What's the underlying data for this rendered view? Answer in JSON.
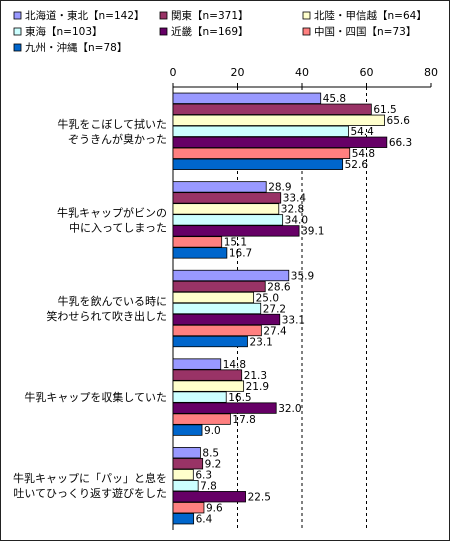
{
  "chart_data": {
    "type": "bar",
    "orientation": "horizontal",
    "title": "",
    "xlabel": "",
    "ylabel": "",
    "xlim": [
      0,
      80
    ],
    "x_ticks": [
      "0",
      "20",
      "40",
      "60",
      "80"
    ],
    "grid": "vertical dashed lines at 20, 40, 60",
    "legend_position": "top",
    "categories": [
      [
        "牛乳をこぼして拭いた",
        "ぞうきんが臭かった"
      ],
      [
        "牛乳キャップがビンの",
        "中に入ってしまった"
      ],
      [
        "牛乳を飲んでいる時に",
        "笑わせられて吹き出した"
      ],
      [
        "牛乳キャップを収集していた"
      ],
      [
        "牛乳キャップに「パッ」と息を",
        "吐いてひっくり返す遊びをした"
      ]
    ],
    "series": [
      {
        "name": "北海道・東北【n=142】",
        "color": "#9999ff",
        "values": [
          45.8,
          28.9,
          35.9,
          14.8,
          8.5
        ]
      },
      {
        "name": "関東【n=371】",
        "color": "#993366",
        "values": [
          61.5,
          33.4,
          28.6,
          21.3,
          9.2
        ]
      },
      {
        "name": "北陸・甲信越【n=64】",
        "color": "#ffffcc",
        "values": [
          65.6,
          32.8,
          25.0,
          21.9,
          6.3
        ]
      },
      {
        "name": "東海【n=103】",
        "color": "#ccffff",
        "values": [
          54.4,
          34.0,
          27.2,
          16.5,
          7.8
        ]
      },
      {
        "name": "近畿【n=169】",
        "color": "#660066",
        "values": [
          66.3,
          39.1,
          33.1,
          32.0,
          22.5
        ]
      },
      {
        "name": "中国・四国【n=73】",
        "color": "#ff8080",
        "values": [
          54.8,
          15.1,
          27.4,
          17.8,
          9.6
        ]
      },
      {
        "name": "九州・沖縄【n=78】",
        "color": "#0066cc",
        "values": [
          52.6,
          16.7,
          23.1,
          9.0,
          6.4
        ]
      }
    ],
    "value_labels": [
      [
        "45.8",
        "61.5",
        "65.6",
        "54.4",
        "66.3",
        "54.8",
        "52.6"
      ],
      [
        "28.9",
        "33.4",
        "32.8",
        "34.0",
        "39.1",
        "15.1",
        "16.7"
      ],
      [
        "35.9",
        "28.6",
        "25.0",
        "27.2",
        "33.1",
        "27.4",
        "23.1"
      ],
      [
        "14.8",
        "21.3",
        "21.9",
        "16.5",
        "32.0",
        "17.8",
        "9.0"
      ],
      [
        "8.5",
        "9.2",
        "6.3",
        "7.8",
        "22.5",
        "9.6",
        "6.4"
      ]
    ]
  }
}
